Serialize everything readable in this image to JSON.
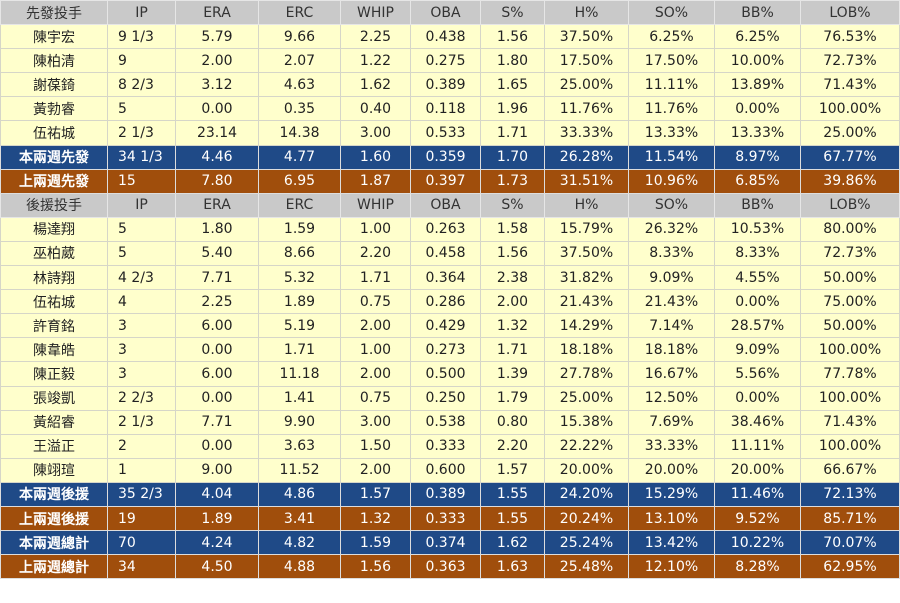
{
  "columns": [
    "IP",
    "ERA",
    "ERC",
    "WHIP",
    "OBA",
    "S%",
    "H%",
    "SO%",
    "BB%",
    "LOB%"
  ],
  "starter_header": "先發投手",
  "starters": [
    [
      "陳宇宏",
      "9 1/3",
      "5.79",
      "9.66",
      "2.25",
      "0.438",
      "1.56",
      "37.50%",
      "6.25%",
      "6.25%",
      "76.53%"
    ],
    [
      "陳柏清",
      "9",
      "2.00",
      "2.07",
      "1.22",
      "0.275",
      "1.80",
      "17.50%",
      "17.50%",
      "10.00%",
      "72.73%"
    ],
    [
      "謝葆錡",
      "8 2/3",
      "3.12",
      "4.63",
      "1.62",
      "0.389",
      "1.65",
      "25.00%",
      "11.11%",
      "13.89%",
      "71.43%"
    ],
    [
      "黃勃睿",
      "5",
      "0.00",
      "0.35",
      "0.40",
      "0.118",
      "1.96",
      "11.76%",
      "11.76%",
      "0.00%",
      "100.00%"
    ],
    [
      "伍祐城",
      "2 1/3",
      "23.14",
      "14.38",
      "3.00",
      "0.533",
      "1.71",
      "33.33%",
      "13.33%",
      "13.33%",
      "25.00%"
    ]
  ],
  "starter_summary": [
    [
      "本兩週先發",
      "34 1/3",
      "4.46",
      "4.77",
      "1.60",
      "0.359",
      "1.70",
      "26.28%",
      "11.54%",
      "8.97%",
      "67.77%"
    ],
    [
      "上兩週先發",
      "15",
      "7.80",
      "6.95",
      "1.87",
      "0.397",
      "1.73",
      "31.51%",
      "10.96%",
      "6.85%",
      "39.86%"
    ]
  ],
  "reliever_header": "後援投手",
  "relievers": [
    [
      "楊達翔",
      "5",
      "1.80",
      "1.59",
      "1.00",
      "0.263",
      "1.58",
      "15.79%",
      "26.32%",
      "10.53%",
      "80.00%"
    ],
    [
      "巫柏葳",
      "5",
      "5.40",
      "8.66",
      "2.20",
      "0.458",
      "1.56",
      "37.50%",
      "8.33%",
      "8.33%",
      "72.73%"
    ],
    [
      "林詩翔",
      "4 2/3",
      "7.71",
      "5.32",
      "1.71",
      "0.364",
      "2.38",
      "31.82%",
      "9.09%",
      "4.55%",
      "50.00%"
    ],
    [
      "伍祐城",
      "4",
      "2.25",
      "1.89",
      "0.75",
      "0.286",
      "2.00",
      "21.43%",
      "21.43%",
      "0.00%",
      "75.00%"
    ],
    [
      "許育銘",
      "3",
      "6.00",
      "5.19",
      "2.00",
      "0.429",
      "1.32",
      "14.29%",
      "7.14%",
      "28.57%",
      "50.00%"
    ],
    [
      "陳韋皓",
      "3",
      "0.00",
      "1.71",
      "1.00",
      "0.273",
      "1.71",
      "18.18%",
      "18.18%",
      "9.09%",
      "100.00%"
    ],
    [
      "陳正毅",
      "3",
      "6.00",
      "11.18",
      "2.00",
      "0.500",
      "1.39",
      "27.78%",
      "16.67%",
      "5.56%",
      "77.78%"
    ],
    [
      "張竣凱",
      "2 2/3",
      "0.00",
      "1.41",
      "0.75",
      "0.250",
      "1.79",
      "25.00%",
      "12.50%",
      "0.00%",
      "100.00%"
    ],
    [
      "黃紹睿",
      "2 1/3",
      "7.71",
      "9.90",
      "3.00",
      "0.538",
      "0.80",
      "15.38%",
      "7.69%",
      "38.46%",
      "71.43%"
    ],
    [
      "王溢正",
      "2",
      "0.00",
      "3.63",
      "1.50",
      "0.333",
      "2.20",
      "22.22%",
      "33.33%",
      "11.11%",
      "100.00%"
    ],
    [
      "陳翊瑄",
      "1",
      "9.00",
      "11.52",
      "2.00",
      "0.600",
      "1.57",
      "20.00%",
      "20.00%",
      "20.00%",
      "66.67%"
    ]
  ],
  "reliever_summary": [
    [
      "本兩週後援",
      "35 2/3",
      "4.04",
      "4.86",
      "1.57",
      "0.389",
      "1.55",
      "24.20%",
      "15.29%",
      "11.46%",
      "72.13%"
    ],
    [
      "上兩週後援",
      "19",
      "1.89",
      "3.41",
      "1.32",
      "0.333",
      "1.55",
      "20.24%",
      "13.10%",
      "9.52%",
      "85.71%"
    ],
    [
      "本兩週總計",
      "70",
      "4.24",
      "4.82",
      "1.59",
      "0.374",
      "1.62",
      "25.24%",
      "13.42%",
      "10.22%",
      "70.07%"
    ],
    [
      "上兩週總計",
      "34",
      "4.50",
      "4.88",
      "1.56",
      "0.363",
      "1.63",
      "25.48%",
      "12.10%",
      "8.28%",
      "62.95%"
    ]
  ],
  "colors": {
    "header": "#c9c9c9",
    "row": "#ffffcc",
    "this_period": "#1f4a87",
    "last_period": "#a04e0c"
  }
}
